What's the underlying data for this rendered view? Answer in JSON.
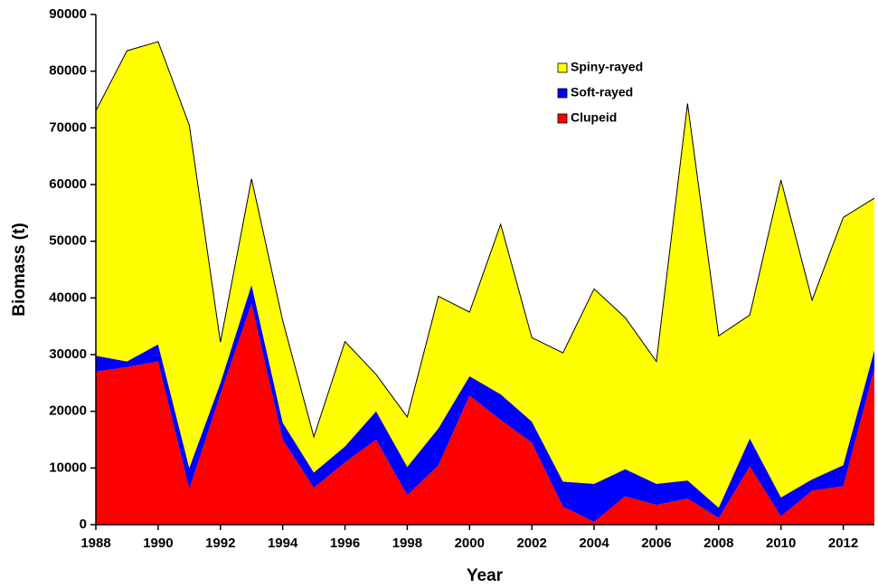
{
  "chart_data": {
    "type": "stacked_area",
    "x_label": "Year",
    "y_label": "Biomass (t)",
    "x": [
      1988,
      1989,
      1990,
      1991,
      1992,
      1993,
      1994,
      1995,
      1996,
      1997,
      1998,
      1999,
      2000,
      2001,
      2002,
      2003,
      2004,
      2005,
      2006,
      2007,
      2008,
      2009,
      2010,
      2011,
      2012,
      2013
    ],
    "series": [
      {
        "name": "Clupeid",
        "color": "#ff0000",
        "values": [
          27000,
          27800,
          28800,
          6300,
          23000,
          39000,
          15000,
          6500,
          11000,
          15000,
          5200,
          10500,
          22800,
          18500,
          14500,
          3200,
          500,
          5000,
          3500,
          4600,
          1200,
          10300,
          1500,
          6000,
          6800,
          27500
        ]
      },
      {
        "name": "Soft-rayed",
        "color": "#0000ff",
        "values": [
          2800,
          1000,
          3000,
          3700,
          2000,
          3300,
          3000,
          2700,
          2800,
          5000,
          5000,
          6500,
          3400,
          4500,
          3700,
          4400,
          6700,
          4800,
          3700,
          3200,
          1800,
          4900,
          3300,
          2000,
          3700,
          3300
        ]
      },
      {
        "name": "Spiny-rayed",
        "color": "#ffff00",
        "values": [
          43200,
          54800,
          53400,
          60500,
          7200,
          18700,
          18000,
          6300,
          18500,
          6500,
          8800,
          23300,
          11300,
          30000,
          14800,
          22700,
          34400,
          26700,
          21600,
          66500,
          30300,
          21800,
          56000,
          31600,
          43700,
          26800
        ]
      }
    ],
    "xlim": [
      1988,
      2013
    ],
    "xticks": [
      1988,
      1990,
      1992,
      1994,
      1996,
      1998,
      2000,
      2002,
      2004,
      2006,
      2008,
      2010,
      2012
    ],
    "ylim": [
      0,
      90000
    ],
    "yticks": [
      0,
      10000,
      20000,
      30000,
      40000,
      50000,
      60000,
      70000,
      80000,
      90000
    ],
    "legend": "upper right"
  }
}
